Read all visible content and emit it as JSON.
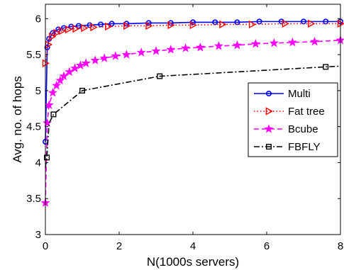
{
  "chart_data": {
    "type": "line",
    "xlabel": "N(1000s servers)",
    "ylabel": "Avg. no. of hops",
    "xlim": [
      0,
      8
    ],
    "ylim": [
      3,
      6.2
    ],
    "xticks": [
      0,
      2,
      4,
      6,
      8
    ],
    "yticks": [
      3,
      3.5,
      4,
      4.5,
      5,
      5.5,
      6
    ],
    "ytick_labels": [
      "3",
      "3.5",
      "4",
      "4.5",
      "5",
      "5.5",
      "6"
    ],
    "grid": false,
    "legend_position": "center-right",
    "series": [
      {
        "name": "Multi",
        "color": "#0000ff",
        "line_style": "solid",
        "marker": "circle",
        "x": [
          0,
          0.05,
          0.1,
          0.2,
          0.35,
          0.5,
          0.7,
          0.9,
          1.2,
          1.5,
          1.8,
          2.2,
          2.8,
          3.4,
          4.0,
          4.6,
          5.2,
          5.8,
          6.4,
          7.0,
          7.6,
          8.0
        ],
        "y": [
          4.29,
          5.6,
          5.72,
          5.8,
          5.85,
          5.87,
          5.89,
          5.9,
          5.91,
          5.92,
          5.93,
          5.93,
          5.94,
          5.94,
          5.95,
          5.95,
          5.95,
          5.96,
          5.96,
          5.96,
          5.96,
          5.96
        ]
      },
      {
        "name": "Fat tree",
        "color": "#ff0000",
        "line_style": "dotted",
        "marker": "triangle-right",
        "x": [
          0,
          0.08,
          0.18,
          0.3,
          0.45,
          0.62,
          0.82,
          1.05,
          1.3,
          1.7,
          2.2,
          2.8,
          3.4,
          4.0,
          4.8,
          5.6,
          6.5,
          7.2,
          8.0
        ],
        "y": [
          5.38,
          5.64,
          5.75,
          5.8,
          5.83,
          5.85,
          5.86,
          5.87,
          5.88,
          5.89,
          5.9,
          5.9,
          5.91,
          5.91,
          5.92,
          5.92,
          5.93,
          5.93,
          5.93
        ]
      },
      {
        "name": "Bcube",
        "color": "#ff00ff",
        "line_style": "dashed",
        "marker": "star",
        "x": [
          0,
          0.05,
          0.1,
          0.2,
          0.3,
          0.4,
          0.5,
          0.65,
          0.8,
          0.95,
          1.1,
          1.35,
          1.6,
          1.9,
          2.2,
          2.6,
          3.0,
          3.4,
          3.8,
          4.2,
          4.7,
          5.2,
          5.7,
          6.2,
          6.7,
          7.3,
          8.0
        ],
        "y": [
          3.44,
          4.55,
          4.8,
          4.97,
          5.07,
          5.14,
          5.2,
          5.26,
          5.31,
          5.35,
          5.38,
          5.42,
          5.45,
          5.48,
          5.5,
          5.53,
          5.55,
          5.57,
          5.59,
          5.6,
          5.62,
          5.63,
          5.65,
          5.66,
          5.67,
          5.68,
          5.7
        ]
      },
      {
        "name": "FBFLY",
        "color": "#000000",
        "line_style": "dash-dot",
        "marker": "square",
        "x": [
          0,
          0.04,
          0.1,
          0.22,
          1.0,
          3.1,
          7.6,
          8.0
        ],
        "y": [
          3.93,
          4.07,
          4.55,
          4.67,
          5.0,
          5.2,
          5.33,
          5.34
        ],
        "marker_x": [
          0.04,
          0.22,
          1.0,
          3.1,
          7.6
        ],
        "marker_y": [
          4.07,
          4.67,
          5.0,
          5.2,
          5.33
        ]
      }
    ]
  }
}
